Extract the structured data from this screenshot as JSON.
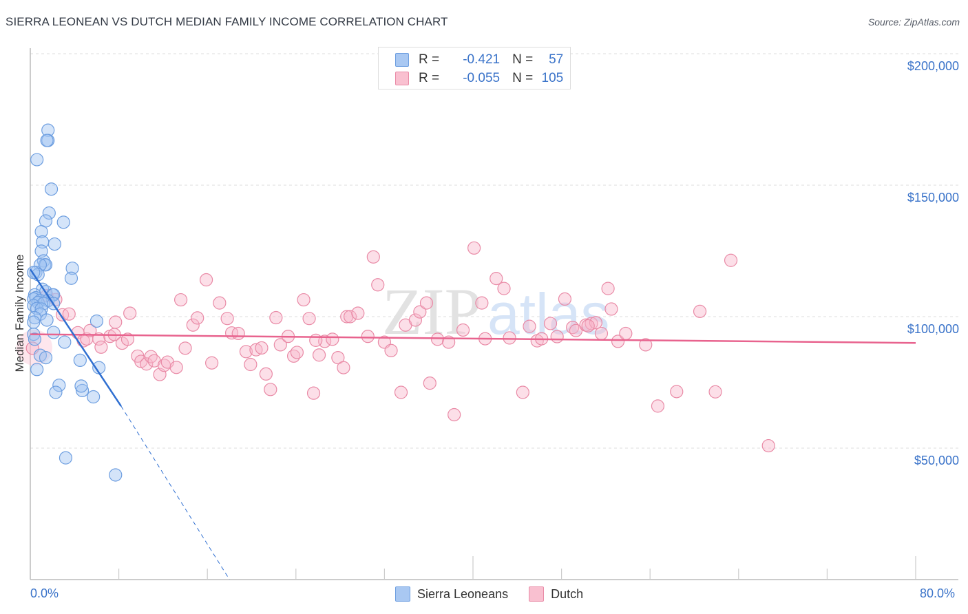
{
  "header": {
    "title": "SIERRA LEONEAN VS DUTCH MEDIAN FAMILY INCOME CORRELATION CHART",
    "source": "Source: ZipAtlas.com"
  },
  "stats_box": {
    "rows": [
      {
        "series": "Sierra Leoneans",
        "r_label": "R =",
        "r_value": "-0.421",
        "n_label": "N =",
        "n_value": "57",
        "color": "#a9c8f2",
        "border": "#6d9ee0"
      },
      {
        "series": "Dutch",
        "r_label": "R =",
        "r_value": "-0.055",
        "n_label": "N =",
        "n_value": "105",
        "color": "#f9c0d0",
        "border": "#e98aa6"
      }
    ]
  },
  "axes": {
    "y_label": "Median Family Income",
    "y_ticks": [
      "$200,000",
      "$150,000",
      "$100,000",
      "$50,000"
    ],
    "x_ticks": [
      "0.0%",
      "80.0%"
    ]
  },
  "legend": {
    "items": [
      {
        "label": "Sierra Leoneans",
        "color": "#a9c8f2",
        "border": "#6d9ee0"
      },
      {
        "label": "Dutch",
        "color": "#f9c0d0",
        "border": "#e98aa6"
      }
    ]
  },
  "watermark": {
    "zip": "ZIP",
    "atlas": "atlas"
  },
  "colors": {
    "blue_fill": "rgba(160,196,242,0.45)",
    "blue_stroke": "#6d9ee0",
    "blue_line": "#2f6fd1",
    "pink_fill": "rgba(248,184,204,0.45)",
    "pink_stroke": "#e98aa6",
    "pink_line": "#e8638e",
    "tick_label": "#3a73c9",
    "grid": "#dddddd"
  },
  "chart_data": {
    "type": "scatter",
    "title": "SIERRA LEONEAN VS DUTCH MEDIAN FAMILY INCOME CORRELATION CHART",
    "xlabel": "",
    "ylabel": "Median Family Income",
    "xlim": [
      0,
      80
    ],
    "ylim": [
      0,
      210000
    ],
    "x_unit": "%",
    "y_ticks": [
      50000,
      100000,
      150000,
      200000
    ],
    "grid": true,
    "legend_position": "bottom",
    "series": [
      {
        "name": "Sierra Leoneans",
        "r": -0.421,
        "n": 57,
        "trend": {
          "x": [
            0.0,
            8.2
          ],
          "y": [
            118000,
            66000
          ],
          "dashed_extension": {
            "x": [
              8.2,
              18.0
            ],
            "y": [
              66000,
              0
            ]
          }
        },
        "points": [
          [
            1.6,
            170900
          ],
          [
            1.6,
            167000
          ],
          [
            1.5,
            167000
          ],
          [
            0.6,
            159700
          ],
          [
            1.9,
            148500
          ],
          [
            1.7,
            139400
          ],
          [
            1.4,
            136400
          ],
          [
            3.0,
            135900
          ],
          [
            1.0,
            132300
          ],
          [
            2.2,
            127600
          ],
          [
            1.1,
            128400
          ],
          [
            1.0,
            124900
          ],
          [
            1.2,
            121200
          ],
          [
            1.3,
            119700
          ],
          [
            1.4,
            119700
          ],
          [
            0.9,
            119700
          ],
          [
            3.8,
            118400
          ],
          [
            0.5,
            116800
          ],
          [
            0.7,
            116000
          ],
          [
            0.3,
            116800
          ],
          [
            3.7,
            114600
          ],
          [
            1.1,
            110400
          ],
          [
            1.4,
            109500
          ],
          [
            0.4,
            108300
          ],
          [
            2.0,
            108300
          ],
          [
            2.1,
            108300
          ],
          [
            0.5,
            107200
          ],
          [
            0.3,
            106700
          ],
          [
            0.9,
            106100
          ],
          [
            1.6,
            106100
          ],
          [
            0.7,
            105400
          ],
          [
            1.2,
            105000
          ],
          [
            2.1,
            105000
          ],
          [
            0.3,
            104200
          ],
          [
            0.6,
            103100
          ],
          [
            1.0,
            102900
          ],
          [
            0.9,
            101000
          ],
          [
            0.4,
            99600
          ],
          [
            1.5,
            98700
          ],
          [
            6.0,
            98300
          ],
          [
            0.3,
            97900
          ],
          [
            2.1,
            94000
          ],
          [
            0.3,
            93300
          ],
          [
            0.4,
            91400
          ],
          [
            3.1,
            90300
          ],
          [
            0.9,
            85300
          ],
          [
            1.4,
            84400
          ],
          [
            4.5,
            83400
          ],
          [
            6.2,
            80600
          ],
          [
            0.6,
            79900
          ],
          [
            2.6,
            73900
          ],
          [
            2.3,
            71200
          ],
          [
            4.7,
            71900
          ],
          [
            4.6,
            73600
          ],
          [
            5.7,
            69500
          ],
          [
            3.2,
            46300
          ],
          [
            7.7,
            39800
          ]
        ]
      },
      {
        "name": "Dutch",
        "r": -0.055,
        "n": 105,
        "trend": {
          "x": [
            0.0,
            80.0
          ],
          "y": [
            93300,
            90000
          ]
        },
        "points": [
          [
            0.2,
            88000
          ],
          [
            1.5,
            108000
          ],
          [
            2.3,
            106500
          ],
          [
            2.9,
            100700
          ],
          [
            3.5,
            101000
          ],
          [
            4.3,
            93900
          ],
          [
            4.8,
            90800
          ],
          [
            5.1,
            91500
          ],
          [
            5.4,
            94700
          ],
          [
            6.2,
            91500
          ],
          [
            6.4,
            88400
          ],
          [
            7.2,
            92500
          ],
          [
            7.6,
            93200
          ],
          [
            7.7,
            97900
          ],
          [
            8.3,
            89900
          ],
          [
            8.8,
            91400
          ],
          [
            9.0,
            101300
          ],
          [
            9.7,
            85000
          ],
          [
            10.0,
            83000
          ],
          [
            10.5,
            82000
          ],
          [
            10.9,
            84800
          ],
          [
            11.2,
            83200
          ],
          [
            11.7,
            78000
          ],
          [
            12.1,
            81500
          ],
          [
            12.4,
            82700
          ],
          [
            13.2,
            80700
          ],
          [
            13.6,
            106400
          ],
          [
            14.0,
            88000
          ],
          [
            14.7,
            96800
          ],
          [
            15.1,
            99500
          ],
          [
            15.9,
            114000
          ],
          [
            16.4,
            82400
          ],
          [
            17.1,
            105200
          ],
          [
            17.8,
            99300
          ],
          [
            18.2,
            93800
          ],
          [
            18.8,
            93600
          ],
          [
            19.5,
            86700
          ],
          [
            19.9,
            81800
          ],
          [
            20.4,
            87400
          ],
          [
            20.9,
            88100
          ],
          [
            21.3,
            78200
          ],
          [
            21.7,
            72300
          ],
          [
            22.2,
            99600
          ],
          [
            22.6,
            89300
          ],
          [
            23.3,
            92500
          ],
          [
            23.8,
            85000
          ],
          [
            24.1,
            86400
          ],
          [
            24.7,
            106400
          ],
          [
            25.2,
            99300
          ],
          [
            25.6,
            70900
          ],
          [
            26.1,
            85400
          ],
          [
            26.6,
            90600
          ],
          [
            27.3,
            91400
          ],
          [
            27.8,
            84400
          ],
          [
            28.3,
            80600
          ],
          [
            28.6,
            100000
          ],
          [
            28.9,
            100000
          ],
          [
            29.6,
            101300
          ],
          [
            30.5,
            92500
          ],
          [
            31.0,
            122700
          ],
          [
            31.4,
            112100
          ],
          [
            32.0,
            90300
          ],
          [
            32.6,
            87100
          ],
          [
            33.5,
            71200
          ],
          [
            33.9,
            96800
          ],
          [
            34.8,
            98700
          ],
          [
            35.2,
            101800
          ],
          [
            35.8,
            105200
          ],
          [
            36.1,
            74700
          ],
          [
            36.8,
            91400
          ],
          [
            37.8,
            90300
          ],
          [
            38.3,
            62700
          ],
          [
            39.1,
            94900
          ],
          [
            40.1,
            126100
          ],
          [
            40.8,
            105200
          ],
          [
            41.1,
            91600
          ],
          [
            42.1,
            114500
          ],
          [
            42.8,
            110700
          ],
          [
            43.3,
            91900
          ],
          [
            44.5,
            71200
          ],
          [
            45.1,
            96300
          ],
          [
            45.8,
            90800
          ],
          [
            46.2,
            91600
          ],
          [
            47.0,
            97400
          ],
          [
            47.6,
            92400
          ],
          [
            48.3,
            106700
          ],
          [
            49.0,
            95900
          ],
          [
            49.3,
            94700
          ],
          [
            50.2,
            96800
          ],
          [
            50.7,
            97400
          ],
          [
            51.1,
            97700
          ],
          [
            51.6,
            93600
          ],
          [
            52.2,
            110700
          ],
          [
            52.5,
            102900
          ],
          [
            53.1,
            90600
          ],
          [
            53.8,
            93600
          ],
          [
            55.6,
            89300
          ],
          [
            56.7,
            66000
          ],
          [
            58.4,
            71500
          ],
          [
            61.9,
            71400
          ],
          [
            63.3,
            121400
          ],
          [
            66.7,
            50900
          ],
          [
            60.5,
            102000
          ],
          [
            50.4,
            96500
          ],
          [
            25.8,
            91000
          ]
        ]
      }
    ]
  }
}
